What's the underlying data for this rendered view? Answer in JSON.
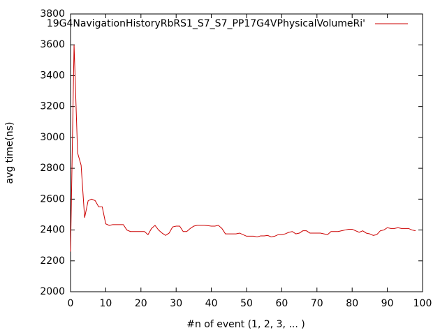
{
  "chart_data": {
    "type": "line",
    "xlabel": "#n of event (1, 2, 3, ... )",
    "ylabel": "avg time(ns)",
    "xlim": [
      0,
      100
    ],
    "xticks": [
      0,
      10,
      20,
      30,
      40,
      50,
      60,
      70,
      80,
      90,
      100
    ],
    "ylim": [
      2000,
      3800
    ],
    "yticks": [
      2000,
      2200,
      2400,
      2600,
      2800,
      3000,
      3200,
      3400,
      3600,
      3800
    ],
    "grid": false,
    "legend": "top-right",
    "x": [
      0,
      1,
      2,
      3,
      4,
      5,
      6,
      7,
      8,
      9,
      10,
      11,
      12,
      13,
      14,
      15,
      16,
      17,
      18,
      19,
      20,
      21,
      22,
      23,
      24,
      25,
      26,
      27,
      28,
      29,
      30,
      31,
      32,
      33,
      34,
      35,
      36,
      37,
      38,
      39,
      40,
      41,
      42,
      43,
      44,
      45,
      46,
      47,
      48,
      49,
      50,
      51,
      52,
      53,
      54,
      55,
      56,
      57,
      58,
      59,
      60,
      61,
      62,
      63,
      64,
      65,
      66,
      67,
      68,
      69,
      70,
      71,
      72,
      73,
      74,
      75,
      76,
      77,
      78,
      79,
      80,
      81,
      82,
      83,
      84,
      85,
      86,
      87,
      88,
      89,
      90,
      91,
      92,
      93,
      94,
      95,
      96,
      97,
      98
    ],
    "series": [
      {
        "name": "19G4NavigationHistoryRbRS1_S7_S7_PP17G4VPhysicalVolumeRi'",
        "color": "#cc0000",
        "values": [
          2260,
          3600,
          2900,
          2820,
          2480,
          2590,
          2600,
          2590,
          2550,
          2550,
          2440,
          2430,
          2435,
          2435,
          2435,
          2435,
          2400,
          2390,
          2390,
          2390,
          2390,
          2390,
          2370,
          2410,
          2430,
          2400,
          2380,
          2365,
          2380,
          2420,
          2425,
          2425,
          2390,
          2390,
          2410,
          2425,
          2430,
          2430,
          2430,
          2428,
          2425,
          2425,
          2430,
          2410,
          2375,
          2375,
          2375,
          2375,
          2380,
          2370,
          2360,
          2360,
          2360,
          2355,
          2362,
          2362,
          2365,
          2355,
          2360,
          2370,
          2370,
          2375,
          2385,
          2390,
          2375,
          2380,
          2395,
          2395,
          2380,
          2380,
          2380,
          2380,
          2375,
          2370,
          2390,
          2390,
          2390,
          2395,
          2400,
          2405,
          2405,
          2395,
          2385,
          2395,
          2380,
          2375,
          2365,
          2370,
          2395,
          2400,
          2415,
          2410,
          2410,
          2415,
          2410,
          2410,
          2410,
          2400,
          2395
        ]
      }
    ]
  }
}
